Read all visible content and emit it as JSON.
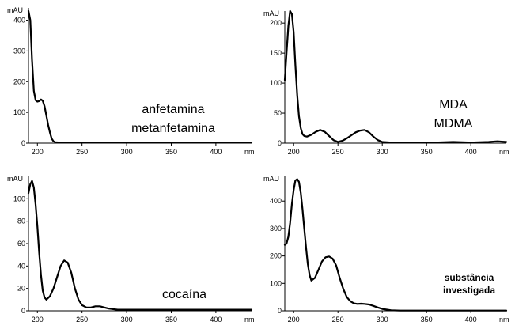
{
  "chart_data": [
    {
      "type": "line",
      "ylabel": "mAU",
      "xlabel": "nm",
      "xlim": [
        190,
        440
      ],
      "ylim": [
        0,
        440
      ],
      "x_ticks": [
        200,
        250,
        300,
        350,
        400
      ],
      "y_ticks": [
        0,
        100,
        200,
        300,
        400
      ],
      "annotation": [
        "anfetamina",
        "metanfetamina"
      ],
      "annotation_style": "normal",
      "series": [
        {
          "x": [
            190,
            192,
            194,
            196,
            198,
            200,
            202,
            204,
            206,
            208,
            210,
            212,
            214,
            216,
            218,
            220,
            225,
            230,
            240,
            260,
            280,
            300,
            320,
            340,
            360,
            380,
            400,
            420,
            440
          ],
          "y": [
            430,
            400,
            270,
            170,
            140,
            135,
            137,
            142,
            138,
            120,
            90,
            60,
            35,
            15,
            6,
            3,
            2,
            2,
            2,
            2,
            2,
            2,
            2,
            2,
            2,
            2,
            2,
            2,
            2
          ]
        }
      ]
    },
    {
      "type": "line",
      "ylabel": "mAU",
      "xlabel": "nm",
      "xlim": [
        190,
        440
      ],
      "ylim": [
        0,
        220
      ],
      "x_ticks": [
        200,
        250,
        300,
        350,
        400
      ],
      "y_ticks": [
        0,
        50,
        100,
        150,
        200
      ],
      "annotation": [
        "MDA",
        "MDMA"
      ],
      "annotation_style": "normal",
      "series": [
        {
          "x": [
            190,
            192,
            194,
            196,
            198,
            200,
            202,
            204,
            206,
            208,
            210,
            212,
            215,
            220,
            225,
            230,
            235,
            240,
            245,
            250,
            255,
            260,
            265,
            270,
            275,
            280,
            285,
            290,
            295,
            300,
            310,
            320,
            340,
            360,
            380,
            400,
            420,
            430,
            440
          ],
          "y": [
            105,
            150,
            195,
            220,
            215,
            185,
            130,
            80,
            45,
            25,
            15,
            12,
            11,
            14,
            19,
            22,
            19,
            12,
            5,
            2,
            4,
            8,
            13,
            18,
            21,
            22,
            18,
            11,
            5,
            2,
            1,
            1,
            1,
            1,
            2,
            1,
            2,
            3,
            2
          ]
        }
      ]
    },
    {
      "type": "line",
      "ylabel": "mAU",
      "xlabel": "nm",
      "xlim": [
        190,
        440
      ],
      "ylim": [
        0,
        120
      ],
      "x_ticks": [
        200,
        250,
        300,
        350,
        400
      ],
      "y_ticks": [
        0,
        20,
        40,
        60,
        80,
        100
      ],
      "annotation": [
        "cocaína"
      ],
      "annotation_style": "normal",
      "series": [
        {
          "x": [
            190,
            192,
            194,
            196,
            198,
            200,
            202,
            204,
            206,
            208,
            210,
            214,
            218,
            222,
            226,
            230,
            234,
            238,
            242,
            246,
            250,
            255,
            260,
            265,
            270,
            275,
            280,
            290,
            300,
            320,
            340,
            360,
            380,
            400,
            420,
            440
          ],
          "y": [
            105,
            113,
            116,
            110,
            95,
            75,
            52,
            32,
            18,
            12,
            10,
            13,
            20,
            30,
            40,
            45,
            43,
            34,
            20,
            10,
            5,
            3,
            3,
            4,
            4,
            3,
            2,
            1,
            1,
            1,
            1,
            1,
            1,
            1,
            1,
            1
          ]
        }
      ]
    },
    {
      "type": "line",
      "ylabel": "mAU",
      "xlabel": "nm",
      "xlim": [
        190,
        440
      ],
      "ylim": [
        0,
        490
      ],
      "x_ticks": [
        200,
        250,
        300,
        350,
        400
      ],
      "y_ticks": [
        0,
        100,
        200,
        300,
        400
      ],
      "annotation": [
        "substância",
        "investigada"
      ],
      "annotation_style": "bold",
      "series": [
        {
          "x": [
            190,
            192,
            194,
            196,
            198,
            200,
            202,
            204,
            206,
            208,
            210,
            212,
            214,
            216,
            218,
            220,
            224,
            228,
            232,
            236,
            240,
            244,
            248,
            252,
            256,
            260,
            264,
            268,
            272,
            276,
            280,
            285,
            290,
            295,
            300,
            310,
            320,
            340,
            360,
            380,
            400,
            420,
            440
          ],
          "y": [
            240,
            245,
            270,
            320,
            390,
            440,
            475,
            480,
            470,
            430,
            370,
            300,
            230,
            170,
            130,
            110,
            120,
            150,
            180,
            195,
            198,
            190,
            165,
            120,
            80,
            50,
            35,
            27,
            25,
            26,
            25,
            23,
            18,
            12,
            7,
            2,
            1,
            1,
            1,
            1,
            1,
            1,
            1
          ]
        }
      ]
    }
  ]
}
